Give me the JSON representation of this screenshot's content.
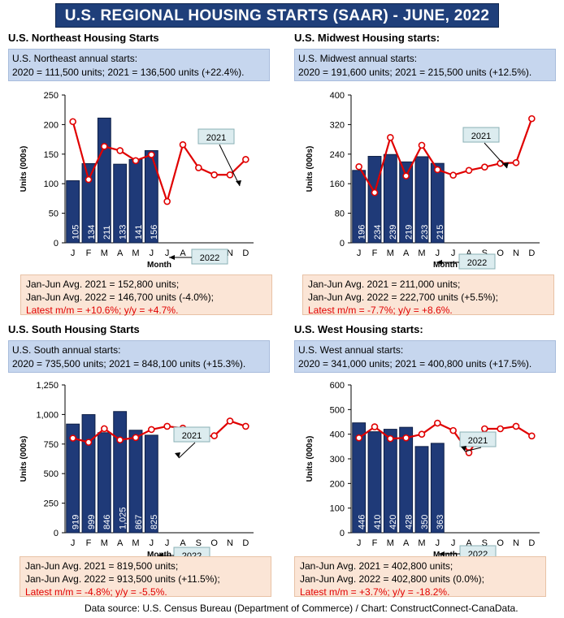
{
  "title": "U.S. REGIONAL HOUSING STARTS (SAAR) - JUNE, 2022",
  "source": "Data source: U.S. Census Bureau (Department of Commerce) / Chart: ConstructConnect-CanaData.",
  "colors": {
    "banner": "#1f3f7a",
    "bar": "#1f3a78",
    "line2021": "#e00000",
    "annual_box": "#c6d6ee",
    "avg_box": "#fbe5d6",
    "latest_text": "#e10000"
  },
  "panels": [
    {
      "heading": "U.S. Northeast Housing Starts",
      "annual_line1": "U.S. Northeast annual starts:",
      "annual_line2": "2020 = 111,500 units; 2021 = 136,500 units (+22.4%).",
      "avg2021": "Jan-Jun Avg. 2021 = 152,800 units;",
      "avg2022": "Jan-Jun Avg. 2022 = 146,700 units (-4.0%);",
      "latest": "Latest m/m = +10.6%; y/y = +4.7%."
    },
    {
      "heading": "U.S. Midwest Housing starts:",
      "annual_line1": "U.S. Midwest annual starts:",
      "annual_line2": "2020 = 191,600 units; 2021 = 215,500 units (+12.5%).",
      "avg2021": "Jan-Jun Avg. 2021 = 211,000 units;",
      "avg2022": "Jan-Jun Avg. 2022 = 222,700 units (+5.5%);",
      "latest": "Latest m/m = -7.7%; y/y = +8.6%."
    },
    {
      "heading": "U.S. South Housing Starts",
      "annual_line1": "U.S. South annual starts:",
      "annual_line2": "2020 = 735,500 units; 2021 = 848,100 units (+15.3%).",
      "avg2021": "Jan-Jun Avg. 2021 = 819,500 units;",
      "avg2022": "Jan-Jun Avg. 2022 = 913,500 units (+11.5%);",
      "latest": "Latest m/m = -4.8%; y/y = -5.5%."
    },
    {
      "heading": "U.S. West Housing starts:",
      "annual_line1": "U.S. West annual starts:",
      "annual_line2": "2020 = 341,000 units; 2021 = 400,800 units (+17.5%).",
      "avg2021": "Jan-Jun Avg. 2021 = 402,800 units;",
      "avg2022": "Jan-Jun Avg. 2022 = 402,800 units (0.0%);",
      "latest": "Latest m/m = +3.7%; y/y = -18.2%."
    }
  ],
  "chart_data": [
    {
      "type": "bar+line",
      "categories": [
        "J",
        "F",
        "M",
        "A",
        "M",
        "J",
        "J",
        "A",
        "S",
        "O",
        "N",
        "D"
      ],
      "xlabel": "Month",
      "ylabel": "Units (000s)",
      "ylim": [
        0,
        250
      ],
      "yticks": [
        0,
        50,
        100,
        150,
        200,
        250
      ],
      "ytick_labels": [
        "0",
        "50",
        "100",
        "150",
        "200",
        "250"
      ],
      "bar_label": "2022",
      "line_label": "2021",
      "bars_2022": [
        105,
        134,
        211,
        133,
        141,
        156
      ],
      "bar_value_labels": [
        "105",
        "134",
        "211",
        "133",
        "141",
        "156"
      ],
      "line_2021": [
        205,
        107,
        163,
        156,
        139,
        149,
        70,
        166,
        127,
        115,
        115,
        141
      ]
    },
    {
      "type": "bar+line",
      "categories": [
        "J",
        "F",
        "M",
        "A",
        "M",
        "J",
        "J",
        "A",
        "S",
        "O",
        "N",
        "D"
      ],
      "xlabel": "Month",
      "ylabel": "Units (000s)",
      "ylim": [
        0,
        400
      ],
      "yticks": [
        0,
        80,
        160,
        240,
        320,
        400
      ],
      "ytick_labels": [
        "0",
        "80",
        "160",
        "240",
        "320",
        "400"
      ],
      "bar_label": "2022",
      "line_label": "2021",
      "bars_2022": [
        196,
        234,
        239,
        219,
        233,
        215
      ],
      "bar_value_labels": [
        "196",
        "234",
        "239",
        "219",
        "233",
        "215"
      ],
      "line_2021": [
        206,
        136,
        285,
        181,
        264,
        198,
        183,
        196,
        205,
        215,
        217,
        336
      ]
    },
    {
      "type": "bar+line",
      "categories": [
        "J",
        "F",
        "M",
        "A",
        "M",
        "J",
        "J",
        "A",
        "S",
        "O",
        "N",
        "D"
      ],
      "xlabel": "Month",
      "ylabel": "Units (000s)",
      "ylim": [
        0,
        1250
      ],
      "yticks": [
        0,
        250,
        500,
        750,
        1000,
        1250
      ],
      "ytick_labels": [
        "0",
        "250",
        "500",
        "750",
        "1,000",
        "1,250"
      ],
      "bar_label": "2022",
      "line_label": "2021",
      "bars_2022": [
        919,
        999,
        846,
        1025,
        867,
        825
      ],
      "bar_value_labels": [
        "919",
        "999",
        "846",
        "1,025",
        "867",
        "825"
      ],
      "line_2021": [
        800,
        765,
        880,
        785,
        805,
        873,
        900,
        885,
        812,
        820,
        945,
        900
      ]
    },
    {
      "type": "bar+line",
      "categories": [
        "J",
        "F",
        "M",
        "A",
        "M",
        "J",
        "J",
        "A",
        "S",
        "O",
        "N",
        "D"
      ],
      "xlabel": "Month",
      "ylabel": "Units (000s)",
      "ylim": [
        0,
        600
      ],
      "yticks": [
        0,
        100,
        200,
        300,
        400,
        500,
        600
      ],
      "ytick_labels": [
        "0",
        "100",
        "200",
        "300",
        "400",
        "500",
        "600"
      ],
      "bar_label": "2022",
      "line_label": "2021",
      "bars_2022": [
        446,
        410,
        420,
        428,
        350,
        363
      ],
      "bar_value_labels": [
        "446",
        "410",
        "420",
        "428",
        "350",
        "363"
      ],
      "line_2021": [
        385,
        430,
        382,
        385,
        400,
        445,
        415,
        325,
        422,
        422,
        432,
        393
      ]
    }
  ]
}
